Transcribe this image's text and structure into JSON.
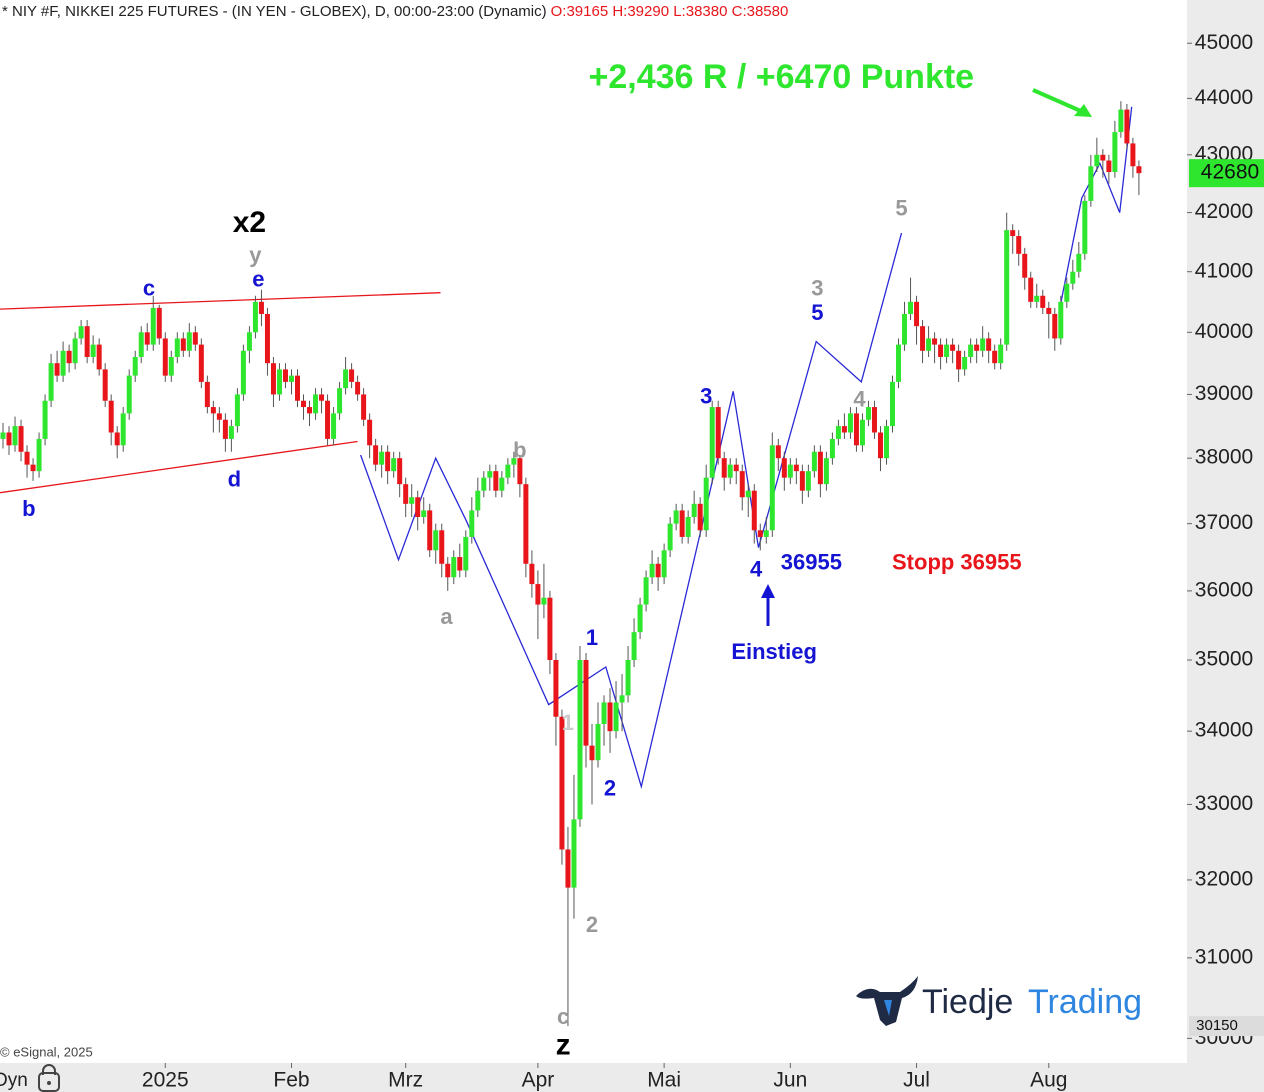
{
  "header": {
    "instrument": "* NIY #F, NIKKEI 225 FUTURES - (IN YEN - GLOBEX), D, 00:00-23:00 (Dynamic)",
    "ohlc": "O:39165 H:39290 L:38380 C:38580"
  },
  "footer": {
    "copyright": "© eSignal, 2025",
    "mode": "Dyn"
  },
  "logo": {
    "part1": "Tiedje",
    "part2": "Trading"
  },
  "chart_data": {
    "type": "candlestick",
    "log": true,
    "up_color": "#2ee62e",
    "down_color": "#e8151b",
    "xlim": [
      -0.5,
      197
    ],
    "xticks": [
      {
        "value": 27,
        "label": "2025"
      },
      {
        "value": 48,
        "label": "Feb"
      },
      {
        "value": 67,
        "label": "Mrz"
      },
      {
        "value": 89,
        "label": "Apr"
      },
      {
        "value": 110,
        "label": "Mai"
      },
      {
        "value": 131,
        "label": "Jun"
      },
      {
        "value": 152,
        "label": "Jul"
      },
      {
        "value": 174,
        "label": "Aug"
      }
    ],
    "ylim": [
      29700,
      45800
    ],
    "yticks": [
      30000,
      31000,
      32000,
      33000,
      34000,
      35000,
      36000,
      37000,
      38000,
      39000,
      40000,
      41000,
      42000,
      43000,
      44000,
      45000
    ],
    "open": [
      38300,
      38400,
      38200,
      38500,
      38100,
      37900,
      37800,
      38300,
      38900,
      39500,
      39300,
      39700,
      39500,
      39900,
      40100,
      39600,
      39800,
      39400,
      38900,
      38400,
      38200,
      38700,
      39300,
      39600,
      40000,
      39800,
      40400,
      39900,
      39300,
      39600,
      39900,
      39700,
      40000,
      39800,
      39200,
      38800,
      38700,
      38600,
      38300,
      38500,
      39000,
      39700,
      40000,
      40500,
      40300,
      39500,
      39000,
      39400,
      39200,
      39300,
      38900,
      38800,
      38700,
      39000,
      38900,
      38300,
      38700,
      39100,
      39400,
      39200,
      39000,
      38600,
      38200,
      37900,
      38100,
      37800,
      38000,
      37600,
      37300,
      37400,
      37100,
      37200,
      36600,
      36900,
      36400,
      36200,
      36500,
      36300,
      36800,
      37200,
      37500,
      37700,
      37800,
      37500,
      37700,
      37900,
      38000,
      37600,
      36400,
      36100,
      35800,
      35900,
      35000,
      34200,
      32400,
      31900,
      32800,
      35000,
      33800,
      33600,
      34100,
      34400,
      34000,
      34400,
      34500,
      35000,
      35400,
      35800,
      36200,
      36400,
      36200,
      36600,
      37000,
      37200,
      36800,
      37100,
      37300,
      36900,
      37700,
      38800,
      38000,
      37700,
      37900,
      37800,
      37400,
      37500,
      36900,
      36800,
      36900,
      38200,
      38000,
      37700,
      37900,
      37800,
      37500,
      37800,
      38100,
      37600,
      38000,
      38300,
      38500,
      38400,
      38700,
      38200,
      38600,
      38800,
      38400,
      38000,
      38500,
      39200,
      39800,
      40300,
      40500,
      40100,
      39700,
      39900,
      39800,
      39600,
      39800,
      39700,
      39400,
      39600,
      39800,
      39700,
      39900,
      39700,
      39500,
      39800,
      41700,
      41600,
      41300,
      40900,
      40500,
      40600,
      40400,
      40300,
      39900,
      40500,
      40800,
      41000,
      41300,
      42200,
      42800,
      43000,
      42900,
      42700,
      43400,
      43800,
      43200,
      42800
    ],
    "high": [
      38550,
      38500,
      38650,
      38600,
      38200,
      38000,
      38400,
      39000,
      39650,
      39700,
      39850,
      39800,
      40000,
      40200,
      40200,
      39950,
      39900,
      39500,
      39000,
      38500,
      38800,
      39400,
      39700,
      40100,
      40150,
      40600,
      40450,
      40000,
      39700,
      40000,
      40000,
      40150,
      40100,
      39900,
      39300,
      38900,
      38800,
      38700,
      38600,
      39100,
      39800,
      40100,
      40600,
      40700,
      40400,
      39600,
      39500,
      39500,
      39400,
      39400,
      39000,
      38900,
      39100,
      39100,
      39000,
      38800,
      39200,
      39600,
      39500,
      39300,
      39100,
      38700,
      38300,
      38200,
      38200,
      38100,
      38100,
      37700,
      37600,
      37500,
      37400,
      37300,
      37000,
      37000,
      36500,
      36600,
      36700,
      36900,
      37400,
      37700,
      37800,
      37900,
      37900,
      37800,
      38000,
      38100,
      38050,
      37700,
      36600,
      36300,
      36400,
      36000,
      35100,
      34300,
      32700,
      33400,
      35200,
      35100,
      34100,
      34400,
      34500,
      34600,
      34700,
      34800,
      35200,
      35600,
      35900,
      36300,
      36600,
      36500,
      36700,
      37100,
      37300,
      37300,
      37200,
      37500,
      37400,
      37900,
      38900,
      38900,
      38100,
      38000,
      38000,
      37900,
      37600,
      37600,
      37000,
      37100,
      38400,
      38300,
      38100,
      38000,
      38000,
      37900,
      37900,
      38200,
      38200,
      38100,
      38400,
      38600,
      38700,
      38800,
      38800,
      38700,
      38900,
      38900,
      38500,
      38600,
      39300,
      39900,
      40500,
      40900,
      40600,
      40200,
      40100,
      40000,
      39900,
      39900,
      39900,
      39800,
      39700,
      39900,
      39900,
      40100,
      40000,
      39800,
      39900,
      42000,
      41800,
      41700,
      41400,
      41000,
      40800,
      40700,
      40500,
      40400,
      40600,
      40900,
      41200,
      41500,
      42300,
      43000,
      43300,
      43100,
      43000,
      43600,
      43950,
      43900,
      43300,
      42900
    ],
    "low": [
      38150,
      38050,
      38100,
      37950,
      37700,
      37650,
      37700,
      38200,
      38800,
      39200,
      39200,
      39350,
      39400,
      39800,
      39500,
      39500,
      39300,
      38800,
      38200,
      38000,
      38100,
      38600,
      39200,
      39500,
      39700,
      39700,
      39800,
      39200,
      39200,
      39500,
      39600,
      39600,
      39700,
      39100,
      38700,
      38400,
      38400,
      38100,
      38100,
      38400,
      38900,
      39500,
      39900,
      40100,
      39300,
      38800,
      38900,
      39100,
      39000,
      38800,
      38600,
      38500,
      38600,
      38700,
      38200,
      38200,
      38600,
      39000,
      39100,
      38900,
      38500,
      38000,
      37800,
      37700,
      37600,
      37700,
      37400,
      37100,
      37100,
      36900,
      37000,
      36500,
      36400,
      36200,
      36000,
      36100,
      36200,
      36200,
      36700,
      37100,
      37400,
      37500,
      37400,
      37400,
      37600,
      37700,
      37400,
      36200,
      35900,
      35300,
      35600,
      34800,
      33800,
      32200,
      30150,
      31500,
      32700,
      33500,
      33000,
      33500,
      33800,
      33700,
      33900,
      34000,
      34400,
      34900,
      35300,
      35700,
      36100,
      36000,
      36100,
      36500,
      36900,
      36700,
      36700,
      37000,
      36800,
      36800,
      37600,
      37900,
      37500,
      37600,
      37600,
      37200,
      37100,
      36700,
      36600,
      36700,
      36800,
      37800,
      37500,
      37600,
      37600,
      37300,
      37400,
      37700,
      37400,
      37500,
      37900,
      38200,
      38300,
      38300,
      38100,
      38100,
      38500,
      38300,
      37800,
      37900,
      38400,
      39100,
      39700,
      40200,
      39800,
      39500,
      39600,
      39500,
      39400,
      39500,
      39500,
      39200,
      39300,
      39500,
      39500,
      39600,
      39500,
      39400,
      39400,
      39700,
      41300,
      41100,
      40700,
      40400,
      40400,
      40300,
      39900,
      39700,
      39800,
      40400,
      40700,
      40900,
      41200,
      42100,
      42700,
      42600,
      42500,
      42600,
      43300,
      43100,
      42600,
      42300
    ],
    "close": [
      38400,
      38200,
      38500,
      38100,
      37900,
      37800,
      38300,
      38900,
      39500,
      39300,
      39700,
      39500,
      39900,
      40100,
      39600,
      39800,
      39400,
      38900,
      38400,
      38200,
      38700,
      39300,
      39600,
      40000,
      39800,
      40400,
      39900,
      39300,
      39600,
      39900,
      39700,
      40000,
      39800,
      39200,
      38800,
      38700,
      38600,
      38300,
      38500,
      39000,
      39700,
      40000,
      40500,
      40300,
      39500,
      39000,
      39400,
      39200,
      39300,
      38900,
      38800,
      38700,
      39000,
      38900,
      38300,
      38700,
      39100,
      39400,
      39200,
      39000,
      38600,
      38200,
      37900,
      38100,
      37800,
      38000,
      37600,
      37300,
      37400,
      37100,
      37200,
      36600,
      36900,
      36400,
      36200,
      36500,
      36300,
      36800,
      37200,
      37500,
      37700,
      37800,
      37500,
      37700,
      37900,
      38000,
      37600,
      36400,
      36100,
      35800,
      35900,
      35000,
      34200,
      32400,
      31900,
      32800,
      35000,
      33800,
      33600,
      34100,
      34400,
      34000,
      34400,
      34500,
      35000,
      35400,
      35800,
      36200,
      36400,
      36200,
      36600,
      37000,
      37200,
      36800,
      37100,
      37300,
      36900,
      37700,
      38800,
      38000,
      37700,
      37900,
      37800,
      37400,
      37500,
      36900,
      36800,
      36900,
      38200,
      38000,
      37700,
      37900,
      37800,
      37500,
      37800,
      38100,
      37600,
      38000,
      38300,
      38500,
      38400,
      38700,
      38200,
      38600,
      38800,
      38400,
      38000,
      38500,
      39200,
      39800,
      40300,
      40500,
      40100,
      39700,
      39900,
      39800,
      39600,
      39800,
      39700,
      39400,
      39600,
      39800,
      39700,
      39900,
      39700,
      39500,
      39800,
      41700,
      41600,
      41300,
      40900,
      40500,
      40600,
      40400,
      40300,
      39900,
      40500,
      40800,
      41000,
      41300,
      42200,
      42800,
      43000,
      42900,
      42700,
      43400,
      43800,
      43200,
      42800,
      42680
    ],
    "price_labels": [
      {
        "value": 42680,
        "label": "42680",
        "color": "#2ee62e"
      },
      {
        "value": 30150,
        "label": "30150",
        "color": "#dcdcdc"
      }
    ],
    "lines": [
      {
        "color": "#e8151b",
        "x": [
          -0.5,
          72.8
        ],
        "y": [
          40380,
          40650
        ]
      },
      {
        "color": "#e8151b",
        "x": [
          -0.5,
          59
        ],
        "y": [
          37470,
          38260
        ]
      },
      {
        "color": "#2a2ad6",
        "x": [
          59.5,
          65.8,
          72,
          77,
          90.8,
          100.3,
          106.2,
          121.5,
          125.7,
          135.3,
          142.8,
          149.5
        ],
        "y": [
          38050,
          36460,
          38000,
          37060,
          34370,
          34900,
          33240,
          39050,
          36640,
          39850,
          39200,
          41650
        ]
      },
      {
        "color": "#2a2ad6",
        "x": [
          175.8,
          179.5,
          182.5,
          185.8,
          187.8
        ],
        "y": [
          40380,
          42250,
          42850,
          42000,
          43850
        ]
      }
    ],
    "annotations": [
      {
        "text": "+2,436 R / +6470 Punkte",
        "x": 129.5,
        "y": 44350,
        "color": "#2ee62e",
        "style": "headline"
      },
      {
        "text": "x2",
        "x": 41,
        "y": 41800,
        "color": "#000000",
        "style": "large"
      },
      {
        "text": "y",
        "x": 42,
        "y": 41250,
        "color": "#999999",
        "style": "normal"
      },
      {
        "text": "e",
        "x": 42.5,
        "y": 40850,
        "color": "#1414d2",
        "style": "normal"
      },
      {
        "text": "c",
        "x": 24.3,
        "y": 40700,
        "color": "#1414d2",
        "style": "normal"
      },
      {
        "text": "d",
        "x": 38.5,
        "y": 37650,
        "color": "#1414d2",
        "style": "normal"
      },
      {
        "text": "b",
        "x": 4.3,
        "y": 37200,
        "color": "#1414d2",
        "style": "normal"
      },
      {
        "text": "a",
        "x": 73.8,
        "y": 35600,
        "color": "#999999",
        "style": "normal"
      },
      {
        "text": "b",
        "x": 86,
        "y": 38100,
        "color": "#999999",
        "style": "normal"
      },
      {
        "text": "1",
        "x": 98,
        "y": 35300,
        "color": "#1414d2",
        "style": "normal"
      },
      {
        "text": "1",
        "x": 94,
        "y": 34100,
        "color": "#cccccc",
        "style": "normal"
      },
      {
        "text": "2",
        "x": 101,
        "y": 33200,
        "color": "#1414d2",
        "style": "normal"
      },
      {
        "text": "2",
        "x": 98,
        "y": 31400,
        "color": "#999999",
        "style": "normal"
      },
      {
        "text": "c",
        "x": 93.2,
        "y": 30250,
        "color": "#999999",
        "style": "normal"
      },
      {
        "text": "z",
        "x": 93.2,
        "y": 29900,
        "color": "#000000",
        "style": "large"
      },
      {
        "text": "3",
        "x": 117,
        "y": 38950,
        "color": "#1414d2",
        "style": "normal"
      },
      {
        "text": "4",
        "x": 125.3,
        "y": 36300,
        "color": "#1414d2",
        "style": "normal"
      },
      {
        "text": "36955",
        "x": 134.5,
        "y": 36400,
        "color": "#1414d2",
        "style": "normal"
      },
      {
        "text": "Stopp 36955",
        "x": 158.7,
        "y": 36400,
        "color": "#e8151b",
        "style": "normal"
      },
      {
        "text": "Einstieg",
        "x": 128.3,
        "y": 35100,
        "color": "#1414d2",
        "style": "normal"
      },
      {
        "text": "3",
        "x": 135.5,
        "y": 40700,
        "color": "#999999",
        "style": "normal"
      },
      {
        "text": "5",
        "x": 135.5,
        "y": 40300,
        "color": "#1414d2",
        "style": "normal"
      },
      {
        "text": "4",
        "x": 142.5,
        "y": 38900,
        "color": "#999999",
        "style": "normal"
      },
      {
        "text": "5",
        "x": 149.5,
        "y": 42050,
        "color": "#999999",
        "style": "normal"
      }
    ]
  }
}
